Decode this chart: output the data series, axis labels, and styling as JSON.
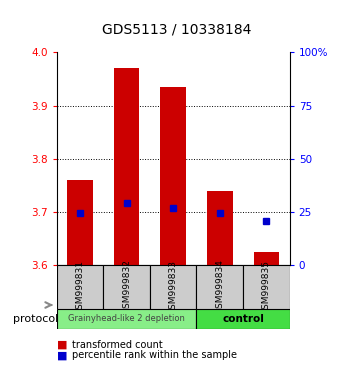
{
  "title": "GDS5113 / 10338184",
  "samples": [
    "GSM999831",
    "GSM999832",
    "GSM999833",
    "GSM999834",
    "GSM999835"
  ],
  "bar_bottoms": [
    3.6,
    3.6,
    3.6,
    3.6,
    3.6
  ],
  "bar_tops": [
    3.76,
    3.97,
    3.935,
    3.74,
    3.625
  ],
  "blue_values": [
    3.698,
    3.717,
    3.707,
    3.697,
    3.683
  ],
  "ylim": [
    3.6,
    4.0
  ],
  "yticks": [
    3.6,
    3.7,
    3.8,
    3.9,
    4.0
  ],
  "right_yticks": [
    0,
    25,
    50,
    75,
    100
  ],
  "right_ylabels": [
    "0",
    "25",
    "50",
    "75",
    "100%"
  ],
  "bar_color": "#cc0000",
  "blue_color": "#0000cc",
  "group1_label": "Grainyhead-like 2 depletion",
  "group1_color": "#88ee88",
  "group2_label": "control",
  "group2_color": "#44dd44",
  "protocol_label": "protocol",
  "legend_red": "transformed count",
  "legend_blue": "percentile rank within the sample",
  "bar_width": 0.55,
  "title_fontsize": 10
}
